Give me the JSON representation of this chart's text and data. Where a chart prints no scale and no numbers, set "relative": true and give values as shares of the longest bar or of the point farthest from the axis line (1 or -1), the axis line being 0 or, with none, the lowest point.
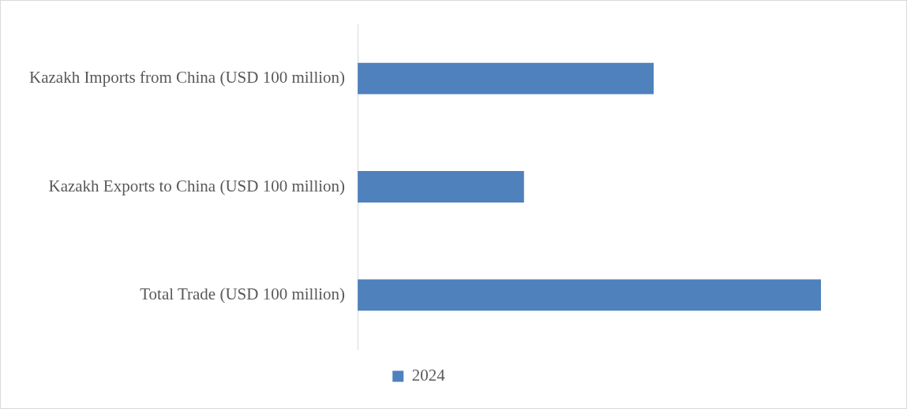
{
  "chart_data": {
    "type": "bar",
    "orientation": "horizontal",
    "relative": true,
    "categories": [
      "Kazakh Imports from China (USD 100 million)",
      "Kazakh Exports to China (USD 100 million)",
      "Total Trade (USD 100 million)"
    ],
    "series": [
      {
        "name": "2024",
        "color": "#4f81bd",
        "values": [
          0.639,
          0.359,
          1
        ]
      }
    ],
    "legend": "bottom"
  }
}
